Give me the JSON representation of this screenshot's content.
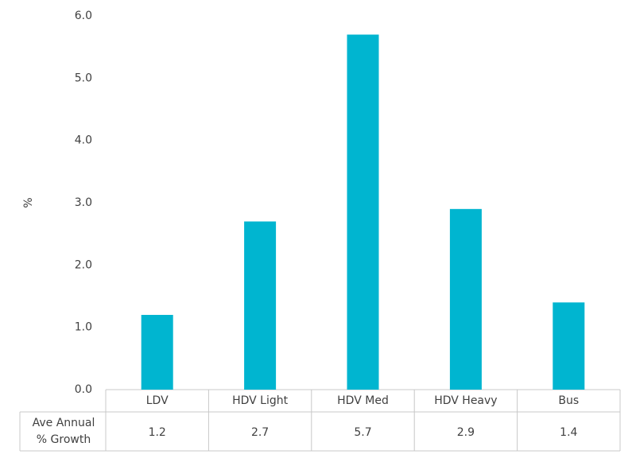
{
  "chart_data": {
    "type": "bar",
    "y_label": "%",
    "categories": [
      "LDV",
      "HDV Light",
      "HDV Med",
      "HDV Heavy",
      "Bus"
    ],
    "values": [
      1.2,
      2.7,
      5.7,
      2.9,
      1.4
    ],
    "color": "#00b5d0",
    "table_row_label": [
      "Ave Annual",
      "% Growth"
    ],
    "ylim": [
      0,
      6
    ],
    "yticks": [
      {
        "value": 0,
        "label": "0.0"
      },
      {
        "value": 1,
        "label": "1.0"
      },
      {
        "value": 2,
        "label": "2.0"
      },
      {
        "value": 3,
        "label": "3.0"
      },
      {
        "value": 4,
        "label": "4.0"
      },
      {
        "value": 5,
        "label": "5.0"
      },
      {
        "value": 6,
        "label": "6.0"
      }
    ],
    "grid": false
  }
}
